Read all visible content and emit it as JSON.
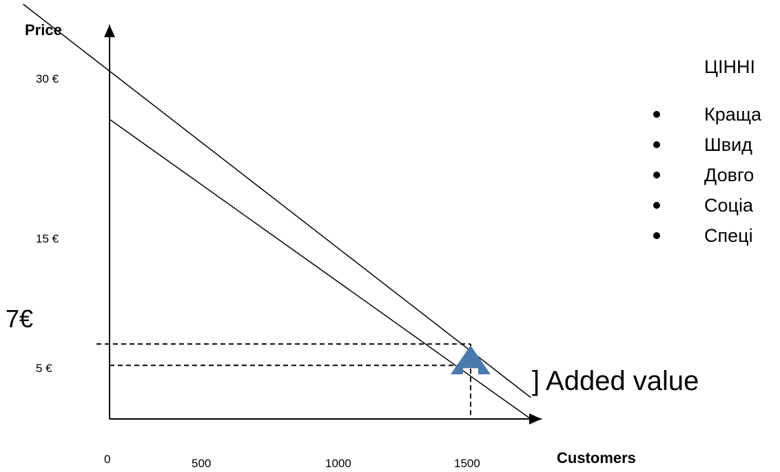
{
  "chart_data": {
    "type": "line",
    "xlabel": "Customers",
    "ylabel": "Price",
    "x_ticks": [
      "0",
      "500",
      "1000",
      "1500"
    ],
    "y_ticks": [
      "30 €",
      "15 €",
      "5 €"
    ],
    "highlight_y_tick": "7€",
    "series": [
      {
        "x": [
          0,
          1750
        ],
        "y": [
          28,
          0
        ]
      },
      {
        "x": [
          0,
          1750
        ],
        "y": [
          32.5,
          2
        ]
      }
    ],
    "guides": [
      {
        "x": 1500,
        "y": 5
      },
      {
        "x": 1500,
        "y": 7
      }
    ],
    "annotation": "] Added value",
    "arrow_color": "#4a7aad"
  },
  "value_panel": {
    "title": "ЦІННІ",
    "items": [
      "Краща",
      "Швид",
      "Довго",
      "Соціа",
      "Спеці"
    ]
  }
}
